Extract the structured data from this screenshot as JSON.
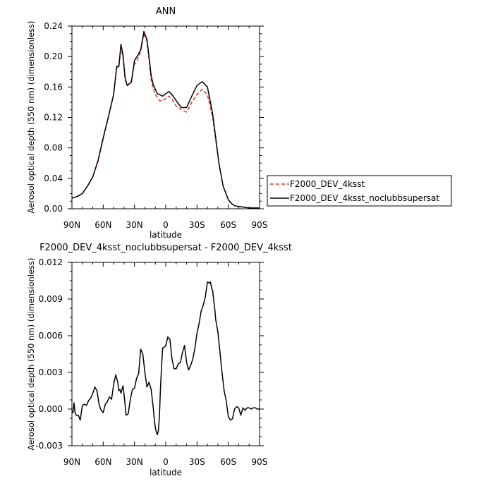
{
  "chart_data": [
    {
      "type": "line",
      "title": "ANN",
      "xlabel": "latitude",
      "ylabel": "Aerosol optical depth (550 nm) (dimensionless)",
      "xlim": [
        90,
        -90
      ],
      "ylim": [
        0,
        0.24
      ],
      "x_ticks": [
        90,
        60,
        30,
        0,
        -30,
        -60,
        -90
      ],
      "x_tick_labels": [
        "90N",
        "60N",
        "30N",
        "0",
        "30S",
        "60S",
        "90S"
      ],
      "y_ticks": [
        0,
        0.04,
        0.08,
        0.12,
        0.16,
        0.2,
        0.24
      ],
      "y_tick_labels": [
        "0.00",
        "0.04",
        "0.08",
        "0.12",
        "0.16",
        "0.20",
        "0.24"
      ],
      "grid": false,
      "legend": "right",
      "series": [
        {
          "name": "F2000_DEV_4ksst",
          "color": "#e8312a",
          "dash": "dashed",
          "x": [
            90,
            85,
            80,
            75,
            70,
            65,
            60,
            55,
            50,
            47,
            45,
            43,
            41,
            39,
            37,
            35,
            33,
            30,
            27,
            24,
            21,
            18,
            16,
            14,
            12,
            10,
            8,
            6,
            3,
            0,
            -3,
            -6,
            -10,
            -15,
            -20,
            -25,
            -30,
            -35,
            -40,
            -45,
            -48,
            -51,
            -55,
            -60,
            -63,
            -66,
            -70,
            -75,
            -80,
            -85,
            -90
          ],
          "y": [
            0.014,
            0.016,
            0.02,
            0.03,
            0.042,
            0.062,
            0.092,
            0.12,
            0.15,
            0.185,
            0.186,
            0.212,
            0.2,
            0.17,
            0.162,
            0.165,
            0.168,
            0.19,
            0.196,
            0.207,
            0.23,
            0.22,
            0.195,
            0.17,
            0.158,
            0.15,
            0.146,
            0.142,
            0.142,
            0.145,
            0.148,
            0.144,
            0.135,
            0.13,
            0.127,
            0.14,
            0.15,
            0.157,
            0.15,
            0.12,
            0.09,
            0.06,
            0.03,
            0.012,
            0.007,
            0.004,
            0.003,
            0.002,
            0.001,
            0.001,
            0.001
          ]
        },
        {
          "name": "F2000_DEV_4ksst_noclubbsupersat",
          "color": "#000000",
          "dash": "solid",
          "x": [
            90,
            85,
            80,
            75,
            70,
            65,
            60,
            55,
            50,
            47,
            45,
            43,
            41,
            39,
            37,
            35,
            33,
            30,
            27,
            24,
            21,
            18,
            16,
            14,
            12,
            10,
            8,
            6,
            3,
            0,
            -3,
            -6,
            -10,
            -15,
            -20,
            -25,
            -30,
            -35,
            -40,
            -45,
            -48,
            -51,
            -55,
            -60,
            -63,
            -66,
            -70,
            -75,
            -80,
            -85,
            -90
          ],
          "y": [
            0.014,
            0.016,
            0.02,
            0.03,
            0.042,
            0.063,
            0.093,
            0.121,
            0.15,
            0.187,
            0.187,
            0.216,
            0.202,
            0.172,
            0.162,
            0.164,
            0.166,
            0.195,
            0.201,
            0.209,
            0.233,
            0.222,
            0.199,
            0.175,
            0.163,
            0.157,
            0.151,
            0.15,
            0.148,
            0.151,
            0.154,
            0.15,
            0.142,
            0.133,
            0.133,
            0.148,
            0.162,
            0.167,
            0.16,
            0.125,
            0.093,
            0.06,
            0.03,
            0.012,
            0.007,
            0.004,
            0.003,
            0.002,
            0.001,
            0.001,
            0.001
          ]
        }
      ]
    },
    {
      "type": "line",
      "title": "F2000_DEV_4ksst_noclubbsupersat - F2000_DEV_4ksst",
      "xlabel": "latitude",
      "ylabel": "Aerosol optical depth (550 nm) (dimensionless)",
      "xlim": [
        90,
        -90
      ],
      "ylim": [
        -0.003,
        0.012
      ],
      "x_ticks": [
        90,
        60,
        30,
        0,
        -30,
        -60,
        -90
      ],
      "x_tick_labels": [
        "90N",
        "60N",
        "30N",
        "0",
        "30S",
        "60S",
        "90S"
      ],
      "y_ticks": [
        -0.003,
        0,
        0.003,
        0.006,
        0.009,
        0.012
      ],
      "y_tick_labels": [
        "-0.003",
        "0.000",
        "0.003",
        "0.006",
        "0.009",
        "0.012"
      ],
      "grid": false,
      "series": [
        {
          "color": "#000000",
          "dash": "solid",
          "x": [
            90,
            89,
            88,
            87,
            86,
            84,
            82,
            80,
            78,
            76,
            74,
            72,
            70,
            68,
            66,
            64,
            62,
            60,
            58,
            56,
            54,
            52,
            50,
            48,
            46,
            45,
            44,
            43,
            42,
            41,
            40,
            38,
            36,
            34,
            32,
            30,
            28,
            26,
            24,
            22,
            20,
            18,
            16,
            14,
            12,
            11,
            10,
            9,
            8,
            7,
            6,
            5,
            4,
            3,
            2,
            0,
            -2,
            -4,
            -6,
            -8,
            -10,
            -12,
            -14,
            -16,
            -18,
            -20,
            -22,
            -24,
            -26,
            -28,
            -30,
            -32,
            -34,
            -36,
            -38,
            -40,
            -42,
            -43,
            -44,
            -45,
            -46,
            -47,
            -48,
            -50,
            -52,
            -54,
            -56,
            -58,
            -60,
            -62,
            -64,
            -66,
            -68,
            -70,
            -72,
            -74,
            -76,
            -78,
            -80,
            -82,
            -84,
            -86,
            -88,
            -90
          ],
          "y": [
            -0.0002,
            -0.0003,
            0.0005,
            -0.0003,
            -0.0005,
            -0.0005,
            -0.0009,
            0.0003,
            0.0004,
            0.0003,
            0.0007,
            0.0009,
            0.0013,
            0.0018,
            0.0015,
            0.0004,
            -0.0001,
            -0.0003,
            0.0004,
            0.0006,
            0.001,
            0.0008,
            0.002,
            0.0028,
            0.0022,
            0.0015,
            0.0016,
            0.0013,
            0.0016,
            0.0019,
            0.0012,
            -0.0005,
            -0.0004,
            0.0008,
            0.0016,
            0.0017,
            0.0025,
            0.0029,
            0.0049,
            0.0045,
            0.003,
            0.0018,
            0.0022,
            0.0016,
            0.0001,
            -0.0008,
            -0.0015,
            -0.0019,
            -0.0021,
            -0.0017,
            -0.0005,
            0.0018,
            0.0035,
            0.005,
            0.005,
            0.0052,
            0.0059,
            0.0057,
            0.0041,
            0.0033,
            0.0033,
            0.0037,
            0.0038,
            0.0046,
            0.0052,
            0.0038,
            0.0032,
            0.0036,
            0.0041,
            0.005,
            0.0062,
            0.007,
            0.008,
            0.0085,
            0.0092,
            0.0104,
            0.0103,
            0.0104,
            0.0099,
            0.0097,
            0.0089,
            0.0082,
            0.0073,
            0.0063,
            0.0047,
            0.003,
            0.0015,
            0.0007,
            -0.0006,
            -0.0009,
            -0.0008,
            0,
            0.0002,
            0.0001,
            -0.0005,
            0.0001,
            -0.0001,
            0.0001,
            0.0001,
            0,
            0.0001,
            0.0001,
            0,
            0
          ]
        }
      ]
    }
  ]
}
